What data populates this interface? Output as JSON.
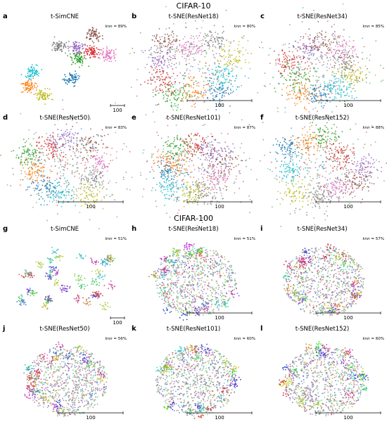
{
  "sections": [
    {
      "title": "CIFAR-10"
    },
    {
      "title": "CIFAR-100"
    }
  ],
  "knn_label": "knn",
  "chart_data": [
    {
      "type": "scatter",
      "letter": "a",
      "title": "t-SimCNE",
      "knn": "= 89%",
      "scalebar": "100",
      "dataset": "CIFAR-10"
    },
    {
      "type": "scatter",
      "letter": "b",
      "title": "t-SNE(ResNet18)",
      "knn": "= 80%",
      "scalebar": "100",
      "dataset": "CIFAR-10"
    },
    {
      "type": "scatter",
      "letter": "c",
      "title": "t-SNE(ResNet34)",
      "knn": "= 85%",
      "scalebar": "100",
      "dataset": "CIFAR-10"
    },
    {
      "type": "scatter",
      "letter": "d",
      "title": "t-SNE(ResNet50)",
      "knn": "= 83%",
      "scalebar": "100",
      "dataset": "CIFAR-10"
    },
    {
      "type": "scatter",
      "letter": "e",
      "title": "t-SNE(ResNet101)",
      "knn": "= 87%",
      "scalebar": "100",
      "dataset": "CIFAR-10"
    },
    {
      "type": "scatter",
      "letter": "f",
      "title": "t-SNE(ResNet152)",
      "knn": "= 88%",
      "scalebar": "100",
      "dataset": "CIFAR-10"
    },
    {
      "type": "scatter",
      "letter": "g",
      "title": "t-SimCNE",
      "knn": "= 51%",
      "scalebar": "100",
      "dataset": "CIFAR-100"
    },
    {
      "type": "scatter",
      "letter": "h",
      "title": "t-SNE(ResNet18)",
      "knn": "= 51%",
      "scalebar": "100",
      "dataset": "CIFAR-100"
    },
    {
      "type": "scatter",
      "letter": "i",
      "title": "t-SNE(ResNet34)",
      "knn": "= 57%",
      "scalebar": "100",
      "dataset": "CIFAR-100"
    },
    {
      "type": "scatter",
      "letter": "j",
      "title": "t-SNE(ResNet50)",
      "knn": "= 56%",
      "scalebar": "100",
      "dataset": "CIFAR-100"
    },
    {
      "type": "scatter",
      "letter": "k",
      "title": "t-SNE(ResNet101)",
      "knn": "= 60%",
      "scalebar": "100",
      "dataset": "CIFAR-100"
    },
    {
      "type": "scatter",
      "letter": "l",
      "title": "t-SNE(ResNet152)",
      "knn": "= 60%",
      "scalebar": "100",
      "dataset": "CIFAR-100"
    }
  ],
  "palette10": [
    "#1f77b4",
    "#ff7f0e",
    "#2ca02c",
    "#d62728",
    "#9467bd",
    "#8c564b",
    "#e377c2",
    "#7f7f7f",
    "#bcbd22",
    "#17becf"
  ]
}
